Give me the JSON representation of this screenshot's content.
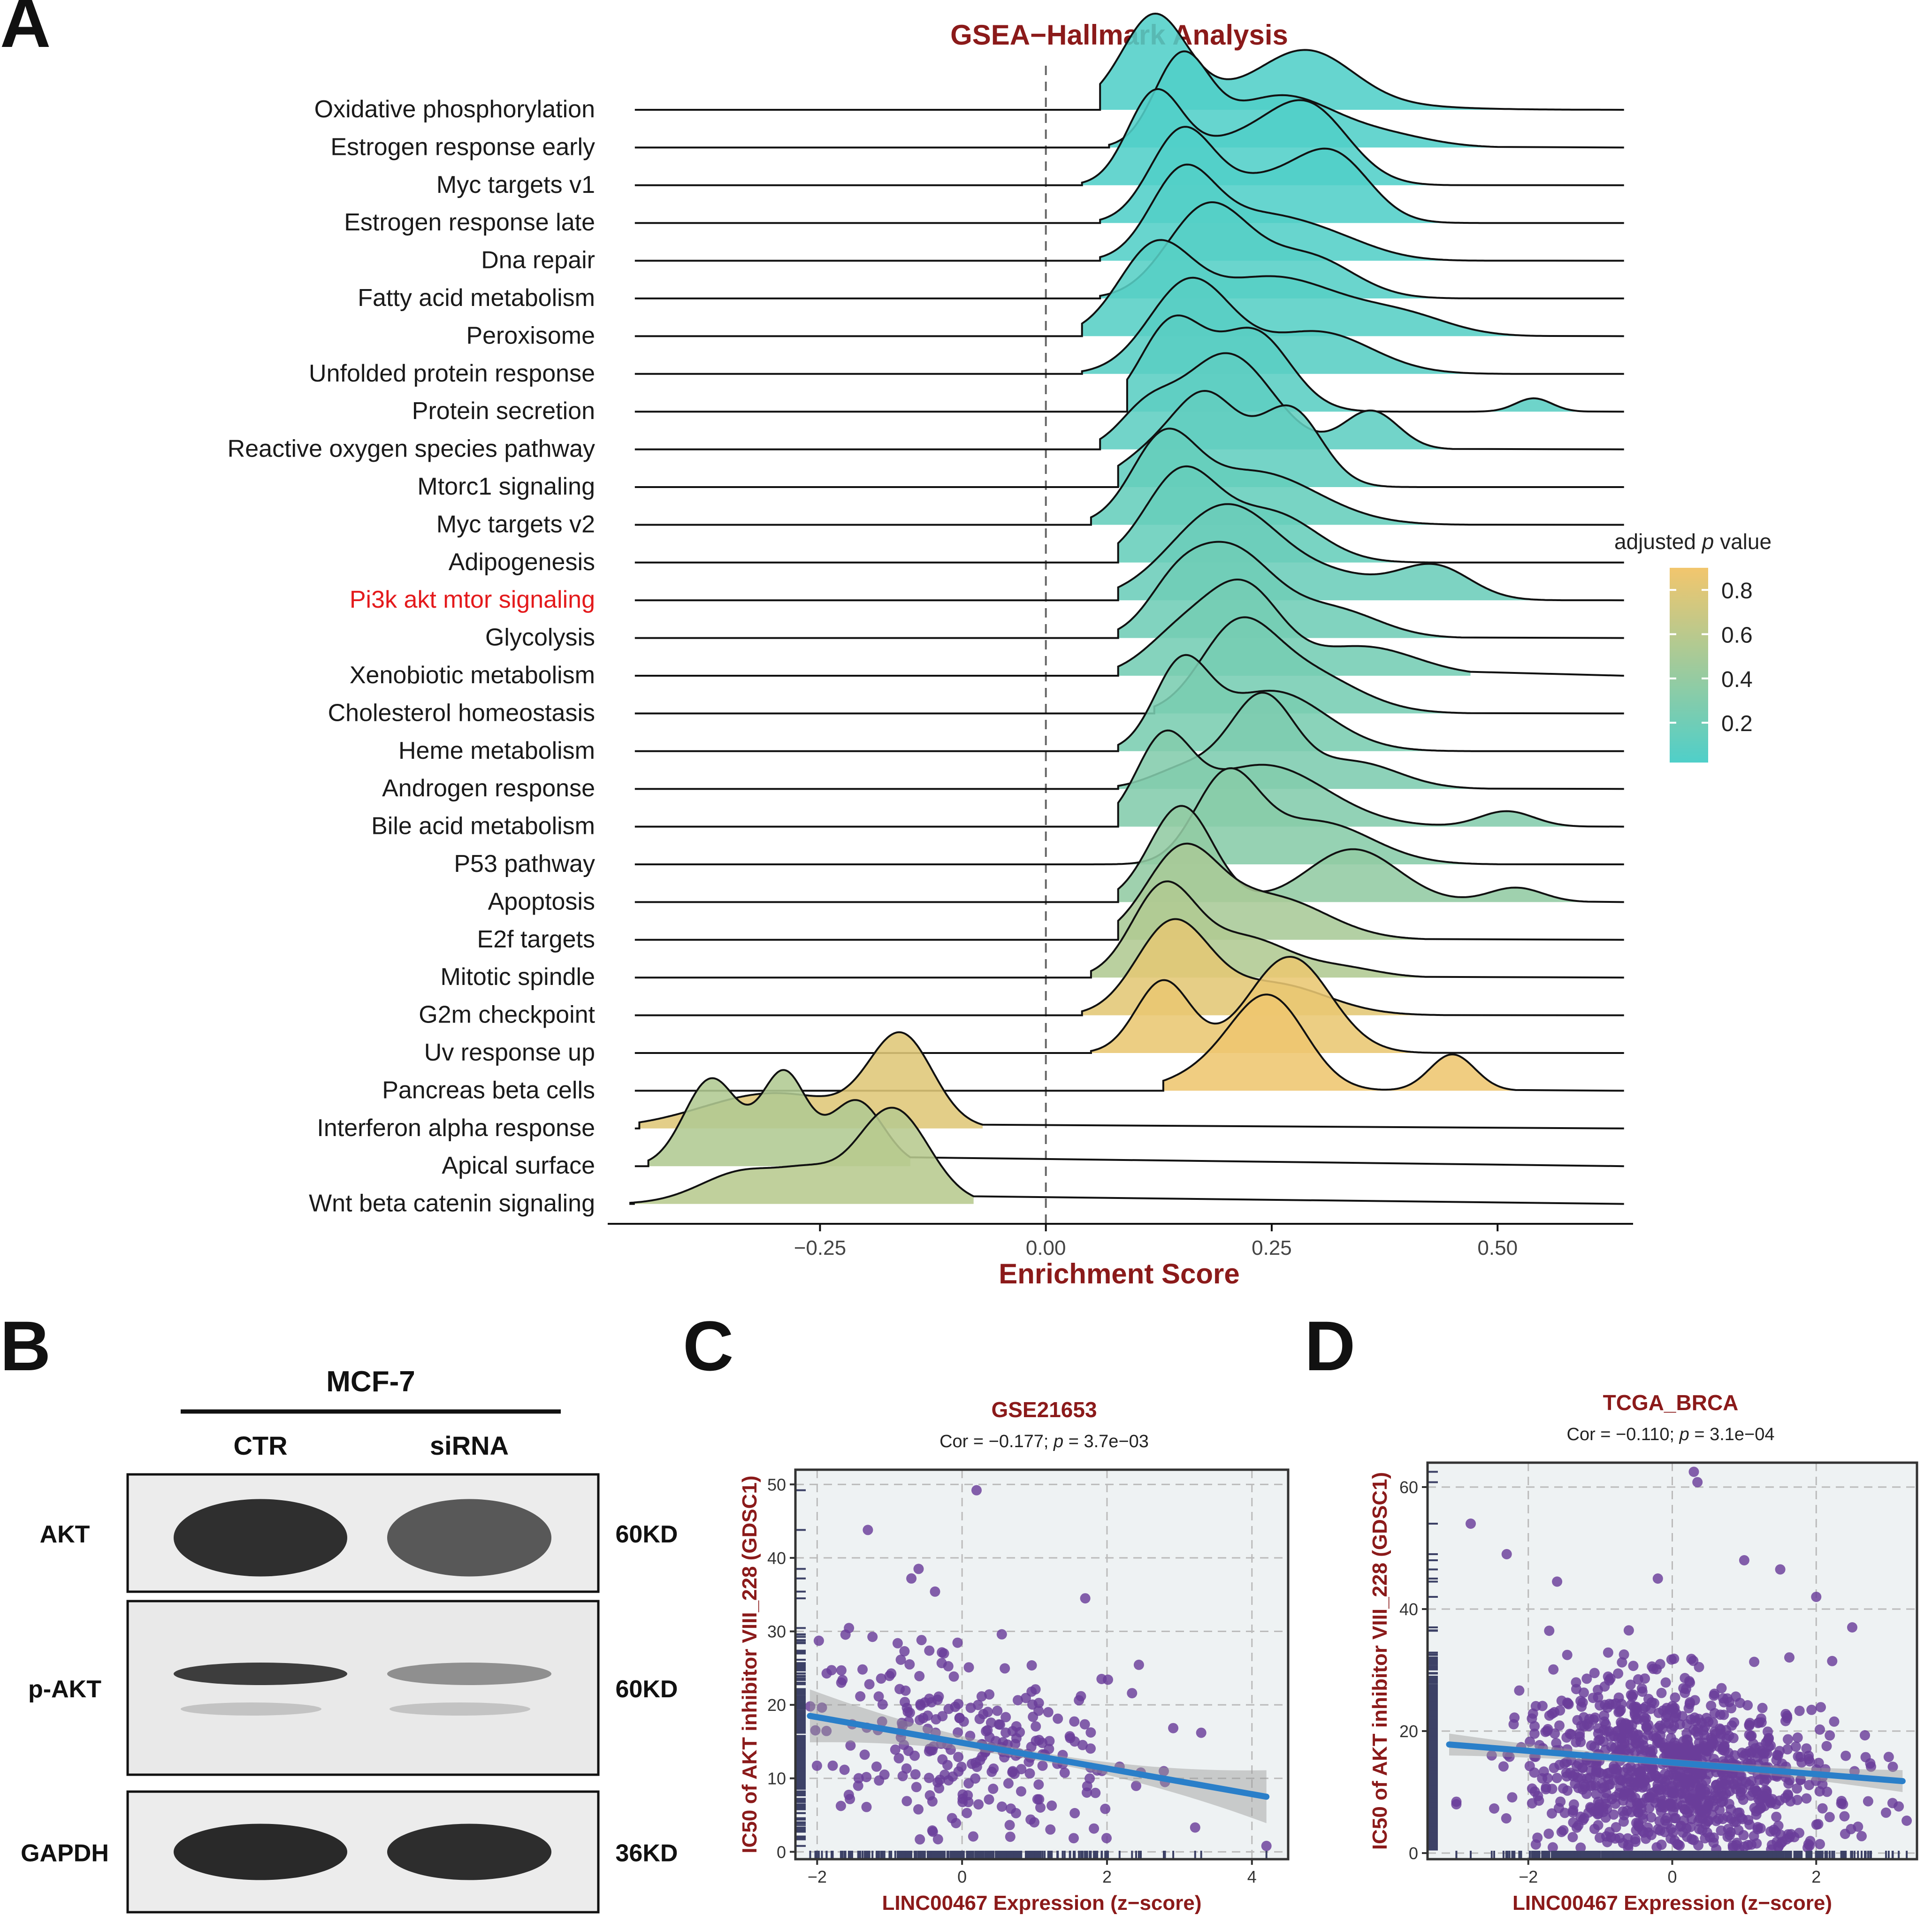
{
  "panels": {
    "A": "A",
    "B": "B",
    "C": "C",
    "D": "D"
  },
  "chart_data": [
    {
      "id": "A",
      "type": "ridgeline",
      "title": "GSEA−Hallmark Analysis",
      "xlabel": "Enrichment Score",
      "x_ticks": [
        -0.25,
        0.0,
        0.25,
        0.5
      ],
      "x_tick_labels": [
        "−0.25",
        "0.00",
        "0.25",
        "0.50"
      ],
      "xlim": [
        -0.485,
        0.65
      ],
      "highlight_color": "#e41a1c",
      "legend": {
        "title_prefix": "adjusted ",
        "title_italic": "p",
        "title_suffix": " value",
        "ticks": [
          0.2,
          0.4,
          0.6,
          0.8
        ],
        "tick_labels": [
          "0.2",
          "0.4",
          "0.6",
          "0.8"
        ],
        "range": [
          0.02,
          0.9
        ],
        "low_color": "#4fcfc9",
        "high_color": "#f2c66d",
        "placement": "right"
      },
      "series": [
        {
          "name": "Oxidative phosphorylation",
          "padj": 0.03,
          "peaks": [
            [
              0.12,
              0.035,
              1.0
            ],
            [
              0.29,
              0.05,
              0.55
            ],
            [
              0.22,
              0.12,
              0.18
            ]
          ],
          "range": [
            0.06,
            0.62
          ],
          "highlight": false
        },
        {
          "name": "Estrogen response early",
          "padj": 0.03,
          "peaks": [
            [
              0.15,
              0.03,
              1.0
            ],
            [
              0.26,
              0.06,
              0.6
            ],
            [
              0.38,
              0.05,
              0.12
            ]
          ],
          "range": [
            0.07,
            0.5
          ],
          "highlight": false
        },
        {
          "name": "Myc targets v1",
          "padj": 0.03,
          "peaks": [
            [
              0.12,
              0.03,
              1.0
            ],
            [
              0.29,
              0.045,
              0.9
            ],
            [
              0.2,
              0.05,
              0.45
            ]
          ],
          "range": [
            0.04,
            0.45
          ],
          "highlight": false
        },
        {
          "name": "Estrogen response late",
          "padj": 0.03,
          "peaks": [
            [
              0.15,
              0.035,
              1.0
            ],
            [
              0.32,
              0.04,
              0.7
            ],
            [
              0.24,
              0.05,
              0.45
            ]
          ],
          "range": [
            0.06,
            0.48
          ],
          "highlight": false
        },
        {
          "name": "Dna repair",
          "padj": 0.04,
          "peaks": [
            [
              0.15,
              0.035,
              1.0
            ],
            [
              0.23,
              0.06,
              0.55
            ],
            [
              0.32,
              0.05,
              0.2
            ]
          ],
          "range": [
            0.06,
            0.5
          ],
          "highlight": false
        },
        {
          "name": "Fatty acid metabolism",
          "padj": 0.05,
          "peaks": [
            [
              0.18,
              0.045,
              1.0
            ],
            [
              0.29,
              0.05,
              0.45
            ]
          ],
          "range": [
            0.06,
            0.47
          ],
          "highlight": false
        },
        {
          "name": "Peroxisome",
          "padj": 0.06,
          "peaks": [
            [
              0.12,
              0.04,
              1.0
            ],
            [
              0.25,
              0.08,
              0.75
            ],
            [
              0.4,
              0.05,
              0.2
            ]
          ],
          "range": [
            0.04,
            0.55
          ],
          "highlight": false
        },
        {
          "name": "Unfolded protein response",
          "padj": 0.07,
          "peaks": [
            [
              0.16,
              0.045,
              1.0
            ],
            [
              0.3,
              0.06,
              0.45
            ]
          ],
          "range": [
            0.04,
            0.55
          ],
          "highlight": false
        },
        {
          "name": "Protein secretion",
          "padj": 0.08,
          "peaks": [
            [
              0.14,
              0.035,
              1.0
            ],
            [
              0.23,
              0.04,
              0.9
            ],
            [
              0.54,
              0.02,
              0.15
            ]
          ],
          "range": [
            0.09,
            0.6
          ],
          "highlight": false
        },
        {
          "name": "Reactive oxygen species pathway",
          "padj": 0.1,
          "peaks": [
            [
              0.2,
              0.05,
              1.0
            ],
            [
              0.36,
              0.03,
              0.4
            ],
            [
              0.11,
              0.03,
              0.35
            ]
          ],
          "range": [
            0.06,
            0.45
          ],
          "highlight": false
        },
        {
          "name": "Mtorc1 signaling",
          "padj": 0.12,
          "peaks": [
            [
              0.18,
              0.035,
              1.0
            ],
            [
              0.27,
              0.035,
              0.95
            ],
            [
              0.12,
              0.04,
              0.4
            ]
          ],
          "range": [
            0.08,
            0.47
          ],
          "highlight": false
        },
        {
          "name": "Myc targets v2",
          "padj": 0.14,
          "peaks": [
            [
              0.13,
              0.035,
              1.0
            ],
            [
              0.23,
              0.07,
              0.7
            ]
          ],
          "range": [
            0.05,
            0.47
          ],
          "highlight": false
        },
        {
          "name": "Adipogenesis",
          "padj": 0.15,
          "peaks": [
            [
              0.15,
              0.04,
              1.0
            ],
            [
              0.25,
              0.05,
              0.55
            ]
          ],
          "range": [
            0.08,
            0.46
          ],
          "highlight": false
        },
        {
          "name": "Pi3k akt mtor signaling",
          "padj": 0.17,
          "peaks": [
            [
              0.2,
              0.06,
              1.0
            ],
            [
              0.43,
              0.04,
              0.35
            ],
            [
              0.33,
              0.05,
              0.2
            ]
          ],
          "range": [
            0.08,
            0.58
          ],
          "highlight": true
        },
        {
          "name": "Glycolysis",
          "padj": 0.2,
          "peaks": [
            [
              0.2,
              0.05,
              1.0
            ],
            [
              0.14,
              0.03,
              0.3
            ],
            [
              0.32,
              0.05,
              0.3
            ]
          ],
          "range": [
            0.08,
            0.46
          ],
          "highlight": false
        },
        {
          "name": "Xenobiotic metabolism",
          "padj": 0.22,
          "peaks": [
            [
              0.22,
              0.04,
              1.0
            ],
            [
              0.15,
              0.04,
              0.5
            ],
            [
              0.35,
              0.06,
              0.35
            ]
          ],
          "range": [
            0.08,
            0.47
          ],
          "highlight": false
        },
        {
          "name": "Cholesterol homeostasis",
          "padj": 0.23,
          "peaks": [
            [
              0.21,
              0.04,
              1.0
            ],
            [
              0.28,
              0.06,
              0.6
            ]
          ],
          "range": [
            0.12,
            0.47
          ],
          "highlight": false
        },
        {
          "name": "Heme metabolism",
          "padj": 0.25,
          "peaks": [
            [
              0.15,
              0.03,
              1.0
            ],
            [
              0.25,
              0.06,
              0.75
            ]
          ],
          "range": [
            0.08,
            0.48
          ],
          "highlight": false
        },
        {
          "name": "Androgen response",
          "padj": 0.27,
          "peaks": [
            [
              0.24,
              0.035,
              1.0
            ],
            [
              0.34,
              0.05,
              0.3
            ],
            [
              0.16,
              0.04,
              0.25
            ]
          ],
          "range": [
            0.08,
            0.49
          ],
          "highlight": false
        },
        {
          "name": "Bile acid metabolism",
          "padj": 0.3,
          "peaks": [
            [
              0.13,
              0.03,
              1.0
            ],
            [
              0.24,
              0.07,
              0.8
            ],
            [
              0.51,
              0.03,
              0.2
            ]
          ],
          "range": [
            0.08,
            0.6
          ],
          "highlight": false
        },
        {
          "name": "P53 pathway",
          "padj": 0.33,
          "peaks": [
            [
              0.2,
              0.035,
              1.0
            ],
            [
              0.3,
              0.06,
              0.5
            ]
          ],
          "range": [
            0.05,
            0.5
          ],
          "highlight": false
        },
        {
          "name": "Apoptosis",
          "padj": 0.38,
          "peaks": [
            [
              0.15,
              0.035,
              1.0
            ],
            [
              0.34,
              0.05,
              0.55
            ],
            [
              0.52,
              0.03,
              0.15
            ]
          ],
          "range": [
            0.08,
            0.6
          ],
          "highlight": false
        },
        {
          "name": "E2f targets",
          "padj": 0.5,
          "peaks": [
            [
              0.15,
              0.04,
              1.0
            ],
            [
              0.25,
              0.06,
              0.5
            ]
          ],
          "range": [
            0.08,
            0.42
          ],
          "highlight": false
        },
        {
          "name": "Mitotic spindle",
          "padj": 0.55,
          "peaks": [
            [
              0.13,
              0.035,
              1.0
            ],
            [
              0.22,
              0.05,
              0.45
            ],
            [
              0.33,
              0.04,
              0.1
            ]
          ],
          "range": [
            0.05,
            0.42
          ],
          "highlight": false
        },
        {
          "name": "G2m checkpoint",
          "padj": 0.82,
          "peaks": [
            [
              0.14,
              0.04,
              1.0
            ],
            [
              0.25,
              0.06,
              0.35
            ]
          ],
          "range": [
            0.04,
            0.45
          ],
          "highlight": false
        },
        {
          "name": "Uv response up",
          "padj": 0.85,
          "peaks": [
            [
              0.13,
              0.03,
              0.75
            ],
            [
              0.27,
              0.045,
              1.0
            ]
          ],
          "range": [
            0.05,
            0.43
          ],
          "highlight": false
        },
        {
          "name": "Pancreas beta cells",
          "padj": 0.88,
          "peaks": [
            [
              0.25,
              0.04,
              1.0
            ],
            [
              0.45,
              0.025,
              0.45
            ],
            [
              0.2,
              0.05,
              0.3
            ]
          ],
          "range": [
            0.13,
            0.52
          ],
          "highlight": false
        },
        {
          "name": "Interferon alpha response",
          "padj": 0.8,
          "peaks": [
            [
              -0.16,
              0.035,
              1.0
            ],
            [
              -0.3,
              0.08,
              0.4
            ]
          ],
          "range": [
            -0.45,
            -0.07
          ],
          "highlight": false
        },
        {
          "name": "Apical surface",
          "padj": 0.55,
          "peaks": [
            [
              -0.37,
              0.03,
              1.0
            ],
            [
              -0.29,
              0.025,
              1.05
            ],
            [
              -0.21,
              0.03,
              0.75
            ]
          ],
          "range": [
            -0.44,
            -0.15
          ],
          "highlight": false
        },
        {
          "name": "Wnt beta catenin signaling",
          "padj": 0.58,
          "peaks": [
            [
              -0.17,
              0.04,
              1.0
            ],
            [
              -0.33,
              0.05,
              0.35
            ],
            [
              -0.26,
              0.03,
              0.2
            ]
          ],
          "range": [
            -0.46,
            -0.08
          ],
          "highlight": false
        }
      ]
    },
    {
      "id": "B",
      "type": "western_blot",
      "cell_line": "MCF-7",
      "conditions": [
        "CTR",
        "siRNA"
      ],
      "rows": [
        {
          "protein": "AKT",
          "size": "60KD",
          "intensity": [
            0.92,
            0.72
          ]
        },
        {
          "protein": "p-AKT",
          "size": "60KD",
          "intensity": [
            0.85,
            0.45
          ]
        },
        {
          "protein": "GAPDH",
          "size": "36KD",
          "intensity": [
            0.95,
            0.93
          ]
        }
      ]
    },
    {
      "id": "C",
      "type": "scatter",
      "title": "GSE21653",
      "subtitle_prefix": "Cor = −0.177; ",
      "subtitle_p": "p",
      "subtitle_suffix": " = 3.7e−03",
      "xlabel": "LINC00467 Expression (z−score)",
      "ylabel": "IC50 of AKT inhibitor VIII_228 (GDSC1)",
      "xlim": [
        -2.3,
        4.5
      ],
      "ylim": [
        -1,
        52
      ],
      "x_ticks": [
        -2,
        0,
        2,
        4
      ],
      "x_tick_labels": [
        "−2",
        "0",
        "2",
        "4"
      ],
      "y_ticks": [
        0,
        10,
        20,
        30,
        40,
        50
      ],
      "y_tick_labels": [
        "0",
        "10",
        "20",
        "30",
        "40",
        "50"
      ],
      "fit": {
        "x0": -2.1,
        "y0": 18.5,
        "x1": 4.2,
        "y1": 7.5
      },
      "n_points": 266,
      "x_center": 0.1,
      "x_spread": 1.0,
      "y_center": 14.5,
      "y_spread": 6.5,
      "slope": -1.75,
      "seed": 7,
      "outliers": [
        [
          0.2,
          49.2
        ],
        [
          -1.3,
          43.8
        ],
        [
          1.7,
          34.5
        ],
        [
          -0.6,
          38.5
        ],
        [
          -0.7,
          37.2
        ],
        [
          4.2,
          0.8
        ],
        [
          3.3,
          16.2
        ],
        [
          2.8,
          9.5
        ]
      ]
    },
    {
      "id": "D",
      "type": "scatter",
      "title": "TCGA_BRCA",
      "subtitle_prefix": "Cor = −0.110; ",
      "subtitle_p": "p",
      "subtitle_suffix": " = 3.1e−04",
      "xlabel": "LINC00467 Expression (z−score)",
      "ylabel": "IC50 of AKT inhibitor VIII_228 (GDSC1)",
      "xlim": [
        -3.4,
        3.4
      ],
      "ylim": [
        -1,
        64
      ],
      "x_ticks": [
        -2,
        0,
        2
      ],
      "x_tick_labels": [
        "−2",
        "0",
        "2"
      ],
      "y_ticks": [
        0,
        20,
        40,
        60
      ],
      "y_tick_labels": [
        "0",
        "20",
        "40",
        "60"
      ],
      "fit": {
        "x0": -3.1,
        "y0": 17.8,
        "x1": 3.2,
        "y1": 11.8
      },
      "n_points": 1050,
      "x_center": 0.1,
      "x_spread": 1.05,
      "y_center": 13.5,
      "y_spread": 7.0,
      "slope": -0.9,
      "seed": 19,
      "outliers": [
        [
          0.3,
          62.5
        ],
        [
          0.35,
          60.8
        ],
        [
          -2.8,
          54.0
        ],
        [
          -2.3,
          49.0
        ],
        [
          -1.6,
          44.5
        ],
        [
          1.5,
          46.5
        ],
        [
          2.0,
          42.0
        ],
        [
          -0.2,
          45.0
        ],
        [
          1.0,
          48.0
        ],
        [
          2.5,
          37.0
        ],
        [
          -3.0,
          8.0
        ]
      ]
    }
  ]
}
